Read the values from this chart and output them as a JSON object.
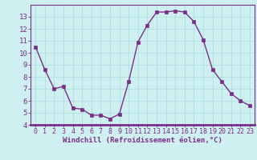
{
  "x": [
    0,
    1,
    2,
    3,
    4,
    5,
    6,
    7,
    8,
    9,
    10,
    11,
    12,
    13,
    14,
    15,
    16,
    17,
    18,
    19,
    20,
    21,
    22,
    23
  ],
  "y": [
    10.5,
    8.6,
    7.0,
    7.2,
    5.4,
    5.3,
    4.8,
    4.8,
    4.5,
    4.9,
    7.6,
    10.9,
    12.3,
    13.4,
    13.4,
    13.5,
    13.4,
    12.6,
    11.1,
    8.6,
    7.6,
    6.6,
    6.0,
    5.6
  ],
  "line_color": "#7b2d8b",
  "marker": "s",
  "marker_size": 2.5,
  "bg_color": "#cff0f0",
  "grid_color": "#a8dcdc",
  "xlabel": "Windchill (Refroidissement éolien,°C)",
  "xlabel_color": "#7b2d8b",
  "tick_color": "#7b2d8b",
  "axis_spine_color": "#7b2d8b",
  "ylim": [
    4,
    14
  ],
  "xlim": [
    -0.5,
    23.5
  ],
  "yticks": [
    4,
    5,
    6,
    7,
    8,
    9,
    10,
    11,
    12,
    13
  ],
  "xticks": [
    0,
    1,
    2,
    3,
    4,
    5,
    6,
    7,
    8,
    9,
    10,
    11,
    12,
    13,
    14,
    15,
    16,
    17,
    18,
    19,
    20,
    21,
    22,
    23
  ],
  "tick_fontsize": 6,
  "xlabel_fontsize": 6.5
}
